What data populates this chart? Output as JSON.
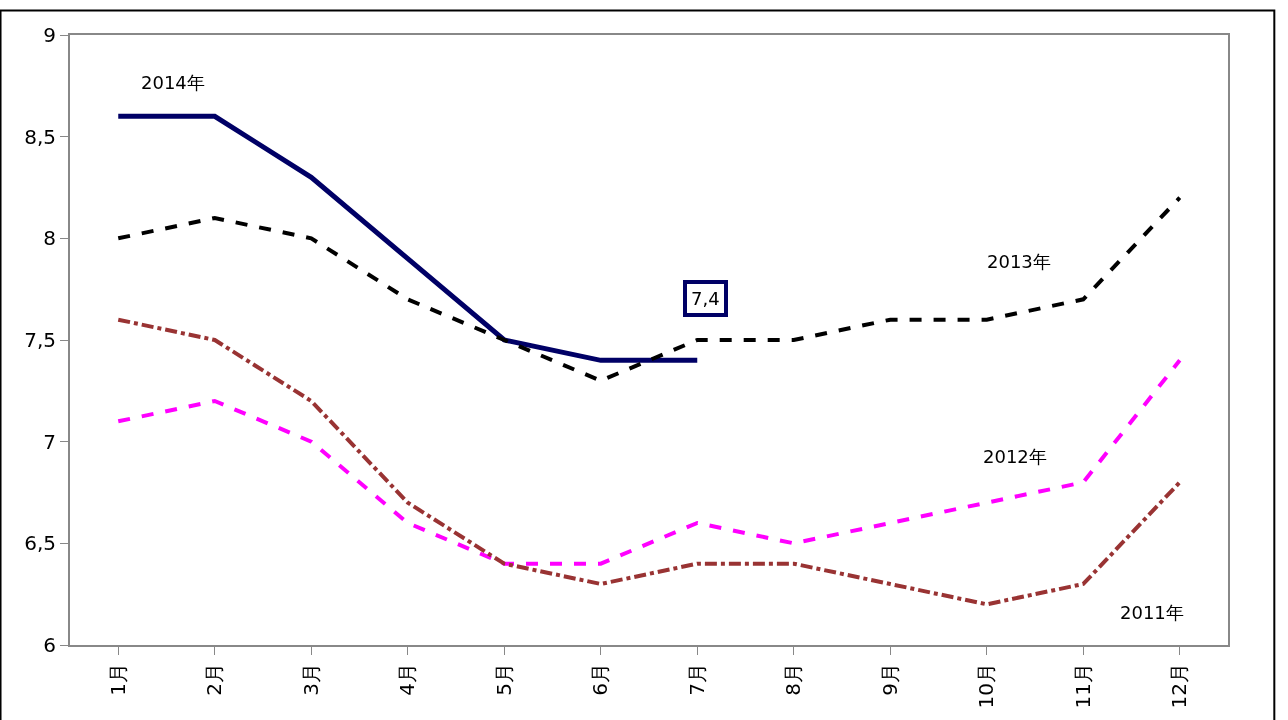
{
  "chart_data": {
    "type": "line",
    "categories": [
      "1月",
      "2月",
      "3月",
      "4月",
      "5月",
      "6月",
      "7月",
      "8月",
      "9月",
      "10月",
      "11月",
      "12月"
    ],
    "series": [
      {
        "name": "2014年",
        "color": "#000066",
        "line_style": "solid",
        "values": [
          8.6,
          8.6,
          8.3,
          7.9,
          7.5,
          7.4,
          7.4,
          null,
          null,
          null,
          null,
          null
        ],
        "value_labels": [
          null,
          null,
          null,
          null,
          null,
          null,
          "7,4",
          null,
          null,
          null,
          null,
          null
        ]
      },
      {
        "name": "2013年",
        "color": "#000000",
        "line_style": "dashed",
        "values": [
          8.0,
          8.1,
          8.0,
          7.7,
          7.5,
          7.3,
          7.5,
          7.5,
          7.6,
          7.6,
          7.7,
          8.2
        ]
      },
      {
        "name": "2012年",
        "color": "#ff00ff",
        "line_style": "dashed",
        "values": [
          7.1,
          7.2,
          7.0,
          6.6,
          6.4,
          6.4,
          6.6,
          6.5,
          6.6,
          6.7,
          6.8,
          7.4
        ]
      },
      {
        "name": "2011年",
        "color": "#993333",
        "line_style": "dashdot",
        "values": [
          7.6,
          7.5,
          7.2,
          6.7,
          6.4,
          6.3,
          6.4,
          6.4,
          6.3,
          6.2,
          6.3,
          6.8
        ]
      }
    ],
    "ylim": [
      6,
      9
    ],
    "yticks": [
      6,
      {
        "value": 6.5,
        "label": "6,5"
      },
      7,
      {
        "value": 7.5,
        "label": "7,5"
      },
      8,
      {
        "value": 8.5,
        "label": "8,5"
      },
      9
    ],
    "legend": false,
    "marker": "none"
  }
}
